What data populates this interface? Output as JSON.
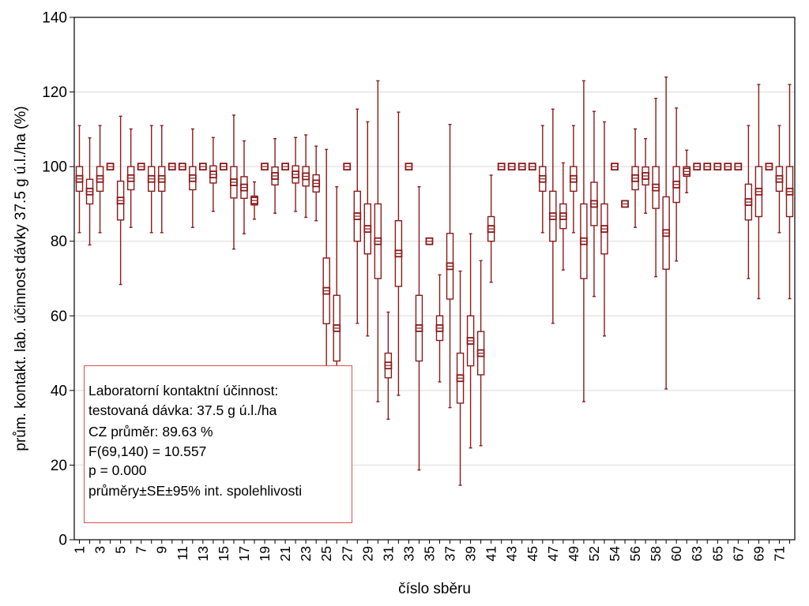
{
  "chart_data": {
    "type": "box",
    "title": "",
    "xlabel": "číslo sběru",
    "ylabel": "prům. kontakt. lab. účinnost dávky 37.5 g ú.l./ha (%)",
    "ylim": [
      0,
      140
    ],
    "y_ticks": [
      0,
      20,
      40,
      60,
      80,
      100,
      120,
      140
    ],
    "grid": "horizontal",
    "x_tick_labels": [
      "1",
      "3",
      "5",
      "7",
      "9",
      "11",
      "13",
      "15",
      "17",
      "19",
      "21",
      "23",
      "25",
      "27",
      "29",
      "31",
      "33",
      "35",
      "37",
      "39",
      "41",
      "43",
      "45",
      "47",
      "49",
      "52",
      "54",
      "56",
      "58",
      "60",
      "63",
      "65",
      "67",
      "69",
      "71"
    ],
    "colors": {
      "series": "#8b1a1a",
      "annotation_border": "#d9534f",
      "grid": "#d9d9d9"
    },
    "series_stats": "mean ± SE (box) ± 95% confidence interval (whiskers)",
    "points": [
      {
        "pos": 1,
        "mean": 96.7,
        "se": 3.3,
        "ci": [
          82.3,
          111.0
        ]
      },
      {
        "pos": 2,
        "mean": 93.3,
        "se": 3.3,
        "ci": [
          79.0,
          107.7
        ]
      },
      {
        "pos": 3,
        "mean": 96.7,
        "se": 3.3,
        "ci": [
          82.3,
          111.0
        ]
      },
      {
        "pos": 4,
        "mean": 100,
        "se": 0,
        "ci": [
          100,
          100
        ]
      },
      {
        "pos": 5,
        "mean": 90.9,
        "se": 5.2,
        "ci": [
          68.4,
          113.5
        ]
      },
      {
        "pos": 6,
        "mean": 96.9,
        "se": 3.1,
        "ci": [
          83.7,
          110.1
        ]
      },
      {
        "pos": 7,
        "mean": 100,
        "se": 0,
        "ci": [
          100,
          100
        ]
      },
      {
        "pos": 8,
        "mean": 96.7,
        "se": 3.3,
        "ci": [
          82.3,
          111.0
        ]
      },
      {
        "pos": 9,
        "mean": 96.7,
        "se": 3.3,
        "ci": [
          82.3,
          111.0
        ]
      },
      {
        "pos": 10,
        "mean": 100,
        "se": 0,
        "ci": [
          100,
          100
        ]
      },
      {
        "pos": 11,
        "mean": 100,
        "se": 0,
        "ci": [
          100,
          100
        ]
      },
      {
        "pos": 12,
        "mean": 96.9,
        "se": 3.1,
        "ci": [
          83.7,
          110.1
        ]
      },
      {
        "pos": 13,
        "mean": 100,
        "se": 0,
        "ci": [
          100,
          100
        ]
      },
      {
        "pos": 14,
        "mean": 97.9,
        "se": 2.3,
        "ci": [
          88.0,
          107.8
        ]
      },
      {
        "pos": 15,
        "mean": 100,
        "se": 0,
        "ci": [
          100,
          100
        ]
      },
      {
        "pos": 16,
        "mean": 95.8,
        "se": 4.2,
        "ci": [
          77.9,
          113.8
        ]
      },
      {
        "pos": 17,
        "mean": 94.4,
        "se": 2.9,
        "ci": [
          82.0,
          106.9
        ]
      },
      {
        "pos": 18,
        "mean": 90.9,
        "se": 1.2,
        "ci": [
          85.9,
          95.9
        ]
      },
      {
        "pos": 19,
        "mean": 100,
        "se": 0,
        "ci": [
          100,
          100
        ]
      },
      {
        "pos": 20,
        "mean": 97.5,
        "se": 2.4,
        "ci": [
          87.5,
          107.5
        ]
      },
      {
        "pos": 21,
        "mean": 100,
        "se": 0,
        "ci": [
          100,
          100
        ]
      },
      {
        "pos": 22,
        "mean": 97.9,
        "se": 2.3,
        "ci": [
          88.0,
          107.8
        ]
      },
      {
        "pos": 23,
        "mean": 97.4,
        "se": 2.6,
        "ci": [
          86.4,
          108.5
        ]
      },
      {
        "pos": 24,
        "mean": 95.5,
        "se": 2.3,
        "ci": [
          85.5,
          105.5
        ]
      },
      {
        "pos": 25,
        "mean": 66.7,
        "se": 8.8,
        "ci": [
          28.7,
          104.6
        ]
      },
      {
        "pos": 26,
        "mean": 56.7,
        "se": 8.8,
        "ci": [
          18.7,
          94.6
        ]
      },
      {
        "pos": 27,
        "mean": 100,
        "se": 0,
        "ci": [
          100,
          100
        ]
      },
      {
        "pos": 28,
        "mean": 86.7,
        "se": 6.7,
        "ci": [
          58.0,
          115.4
        ]
      },
      {
        "pos": 29,
        "mean": 83.3,
        "se": 6.7,
        "ci": [
          54.6,
          112.0
        ]
      },
      {
        "pos": 30,
        "mean": 80.0,
        "se": 10.0,
        "ci": [
          37.0,
          123.0
        ]
      },
      {
        "pos": 31,
        "mean": 46.7,
        "se": 3.3,
        "ci": [
          32.3,
          61.0
        ]
      },
      {
        "pos": 32,
        "mean": 76.7,
        "se": 8.8,
        "ci": [
          38.7,
          114.6
        ]
      },
      {
        "pos": 33,
        "mean": 100,
        "se": 0,
        "ci": [
          100,
          100
        ]
      },
      {
        "pos": 34,
        "mean": 56.7,
        "se": 8.8,
        "ci": [
          18.7,
          94.6
        ]
      },
      {
        "pos": 35,
        "mean": 80,
        "se": 0,
        "ci": [
          80,
          80
        ]
      },
      {
        "pos": 36,
        "mean": 56.7,
        "se": 3.3,
        "ci": [
          42.3,
          71.0
        ]
      },
      {
        "pos": 37,
        "mean": 73.3,
        "se": 8.8,
        "ci": [
          35.4,
          111.3
        ]
      },
      {
        "pos": 38,
        "mean": 43.3,
        "se": 6.7,
        "ci": [
          14.6,
          72.0
        ]
      },
      {
        "pos": 39,
        "mean": 53.3,
        "se": 6.7,
        "ci": [
          24.6,
          82.0
        ]
      },
      {
        "pos": 40,
        "mean": 50.0,
        "se": 5.8,
        "ci": [
          25.2,
          74.8
        ]
      },
      {
        "pos": 41,
        "mean": 83.3,
        "se": 3.3,
        "ci": [
          69.0,
          97.7
        ]
      },
      {
        "pos": 42,
        "mean": 100,
        "se": 0,
        "ci": [
          100,
          100
        ]
      },
      {
        "pos": 43,
        "mean": 100,
        "se": 0,
        "ci": [
          100,
          100
        ]
      },
      {
        "pos": 44,
        "mean": 100,
        "se": 0,
        "ci": [
          100,
          100
        ]
      },
      {
        "pos": 45,
        "mean": 100,
        "se": 0,
        "ci": [
          100,
          100
        ]
      },
      {
        "pos": 46,
        "mean": 96.7,
        "se": 3.3,
        "ci": [
          82.3,
          111.0
        ]
      },
      {
        "pos": 47,
        "mean": 86.7,
        "se": 6.7,
        "ci": [
          58.0,
          115.4
        ]
      },
      {
        "pos": 48,
        "mean": 86.7,
        "se": 3.3,
        "ci": [
          72.3,
          101.0
        ]
      },
      {
        "pos": 49,
        "mean": 96.7,
        "se": 3.3,
        "ci": [
          82.3,
          111.0
        ]
      },
      {
        "pos": 50,
        "mean": 80.0,
        "se": 10.0,
        "ci": [
          37.0,
          123.0
        ]
      },
      {
        "pos": 51,
        "mean": 90.0,
        "se": 5.8,
        "ci": [
          65.2,
          114.8
        ]
      },
      {
        "pos": 52,
        "mean": 83.3,
        "se": 6.7,
        "ci": [
          54.6,
          112.0
        ]
      },
      {
        "pos": 53,
        "mean": 100,
        "se": 0,
        "ci": [
          100,
          100
        ]
      },
      {
        "pos": 54,
        "mean": 90,
        "se": 0,
        "ci": [
          90,
          90
        ]
      },
      {
        "pos": 55,
        "mean": 96.9,
        "se": 3.1,
        "ci": [
          83.7,
          110.1
        ]
      },
      {
        "pos": 56,
        "mean": 97.5,
        "se": 2.4,
        "ci": [
          87.5,
          107.5
        ]
      },
      {
        "pos": 57,
        "mean": 94.4,
        "se": 5.6,
        "ci": [
          70.5,
          118.3
        ]
      },
      {
        "pos": 58,
        "mean": 82.2,
        "se": 9.7,
        "ci": [
          40.4,
          124.0
        ]
      },
      {
        "pos": 59,
        "mean": 95.2,
        "se": 4.8,
        "ci": [
          74.7,
          115.7
        ]
      },
      {
        "pos": 60,
        "mean": 98.7,
        "se": 1.3,
        "ci": [
          93.0,
          104.4
        ]
      },
      {
        "pos": 61,
        "mean": 100,
        "se": 0,
        "ci": [
          100,
          100
        ]
      },
      {
        "pos": 62,
        "mean": 100,
        "se": 0,
        "ci": [
          100,
          100
        ]
      },
      {
        "pos": 63,
        "mean": 100,
        "se": 0,
        "ci": [
          100,
          100
        ]
      },
      {
        "pos": 64,
        "mean": 100,
        "se": 0,
        "ci": [
          100,
          100
        ]
      },
      {
        "pos": 65,
        "mean": 100,
        "se": 0,
        "ci": [
          100,
          100
        ]
      },
      {
        "pos": 66,
        "mean": 90.5,
        "se": 4.8,
        "ci": [
          70.0,
          111.0
        ]
      },
      {
        "pos": 67,
        "mean": 93.3,
        "se": 6.7,
        "ci": [
          64.6,
          122.0
        ]
      },
      {
        "pos": 68,
        "mean": 100,
        "se": 0,
        "ci": [
          100,
          100
        ]
      },
      {
        "pos": 69,
        "mean": 96.7,
        "se": 3.3,
        "ci": [
          82.3,
          111.0
        ]
      },
      {
        "pos": 70,
        "mean": 93.3,
        "se": 6.7,
        "ci": [
          64.6,
          122.0
        ]
      }
    ],
    "annotations": [
      "Laboratorní kontaktní účinnost:",
      "testovaná dávka: 37.5 g ú.l./ha",
      "CZ průměr: 89.63 %",
      "F(69,140) = 10.557",
      "p = 0.000",
      "průměry±SE±95% int. spolehlivosti"
    ]
  }
}
